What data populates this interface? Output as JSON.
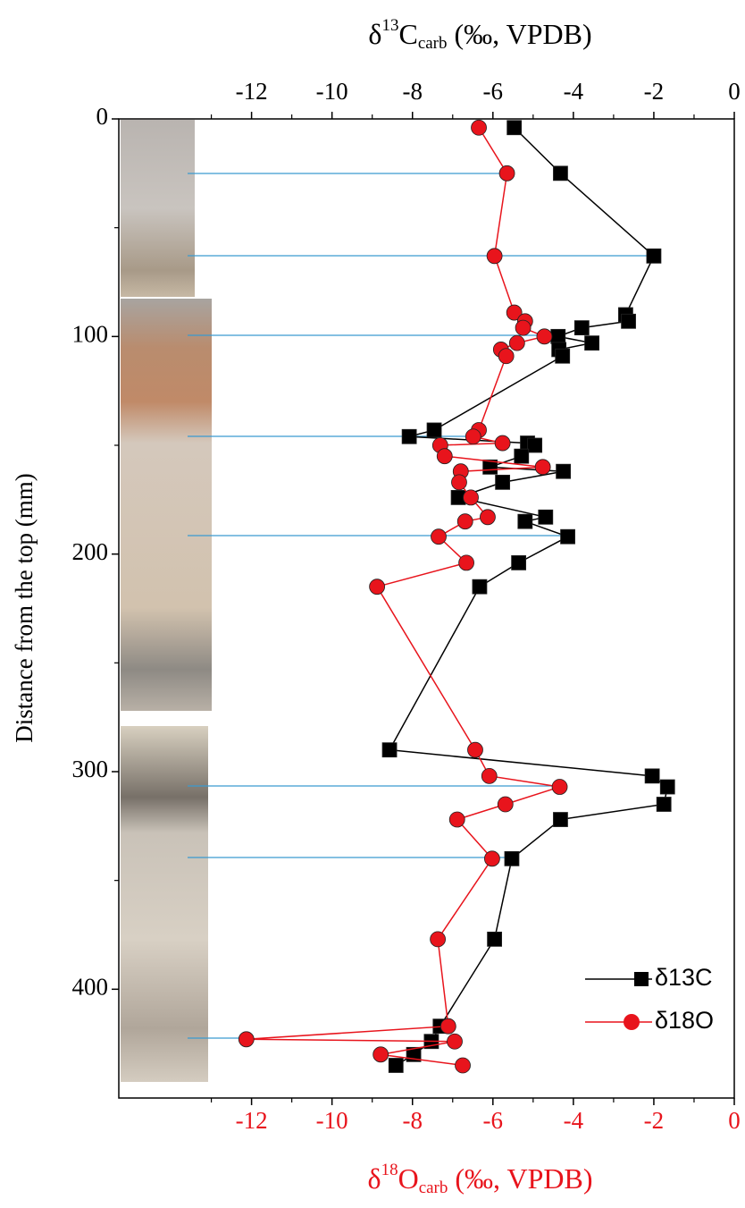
{
  "chart_data": {
    "type": "line",
    "ylabel": "Distance from the top (mm)",
    "ylim": [
      0,
      450
    ],
    "y_inverted": true,
    "yticks": [
      0,
      100,
      200,
      300,
      400
    ],
    "yminorticks": [
      50,
      150,
      250,
      350
    ],
    "x2label": [
      "δ",
      "13",
      "C",
      "carb",
      " (‰, VPDB)"
    ],
    "x2lim": [
      -15.3,
      0
    ],
    "x2ticks": [
      -12,
      -10,
      -8,
      -6,
      -4,
      -2,
      0
    ],
    "x2minorticks": [
      -13,
      -11,
      -9,
      -7,
      -5,
      -3,
      -1
    ],
    "x2color": "#000000",
    "xlabel": [
      "δ",
      "18",
      "O",
      "carb",
      " (‰, VPDB)"
    ],
    "xlim": [
      -15.3,
      0
    ],
    "xticks": [
      -12,
      -10,
      -8,
      -6,
      -4,
      -2,
      0
    ],
    "xminorticks": [
      -13,
      -11,
      -9,
      -7,
      -5,
      -3,
      -1
    ],
    "xcolor": "#e8141c",
    "legend": "lower right",
    "series": [
      {
        "name": "δ13C",
        "color": "#000000",
        "marker": "square",
        "axis": "x2",
        "depth": [
          4,
          25,
          63,
          90,
          93,
          96,
          100,
          103,
          106,
          109,
          143,
          146,
          149,
          150,
          155,
          160,
          162,
          167,
          174,
          183,
          185,
          192,
          204,
          215,
          290,
          302,
          307,
          315,
          322,
          340,
          377,
          417,
          424,
          430,
          435
        ],
        "values": [
          -5.47,
          -4.32,
          -2.0,
          -2.7,
          -2.63,
          -3.79,
          -4.38,
          -3.54,
          -4.36,
          -4.27,
          -7.46,
          -8.08,
          -5.14,
          -4.96,
          -5.29,
          -6.07,
          -4.25,
          -5.76,
          -6.86,
          -4.69,
          -5.2,
          -4.14,
          -5.36,
          -6.33,
          -8.57,
          -2.04,
          -1.66,
          -1.75,
          -4.32,
          -5.53,
          -5.96,
          -7.31,
          -7.53,
          -7.97,
          -8.41
        ]
      },
      {
        "name": "δ18O",
        "color": "#e8141c",
        "marker": "circle",
        "axis": "x",
        "depth": [
          4,
          25,
          63,
          89,
          93,
          96,
          100,
          103,
          106,
          109,
          143,
          146,
          149,
          150,
          155,
          160,
          162,
          167,
          174,
          183,
          185,
          192,
          204,
          215,
          290,
          302,
          307,
          315,
          322,
          340,
          377,
          417,
          423,
          424,
          430,
          435
        ],
        "values": [
          -6.35,
          -5.65,
          -5.96,
          -5.47,
          -5.2,
          -5.25,
          -4.72,
          -5.4,
          -5.8,
          -5.67,
          -6.35,
          -6.49,
          -5.76,
          -7.31,
          -7.2,
          -4.76,
          -6.8,
          -6.84,
          -6.55,
          -6.13,
          -6.69,
          -7.35,
          -6.66,
          -8.88,
          -6.44,
          -6.09,
          -4.34,
          -5.69,
          -6.89,
          -6.02,
          -7.37,
          -7.11,
          -12.13,
          -6.95,
          -8.79,
          -6.75
        ]
      }
    ]
  }
}
